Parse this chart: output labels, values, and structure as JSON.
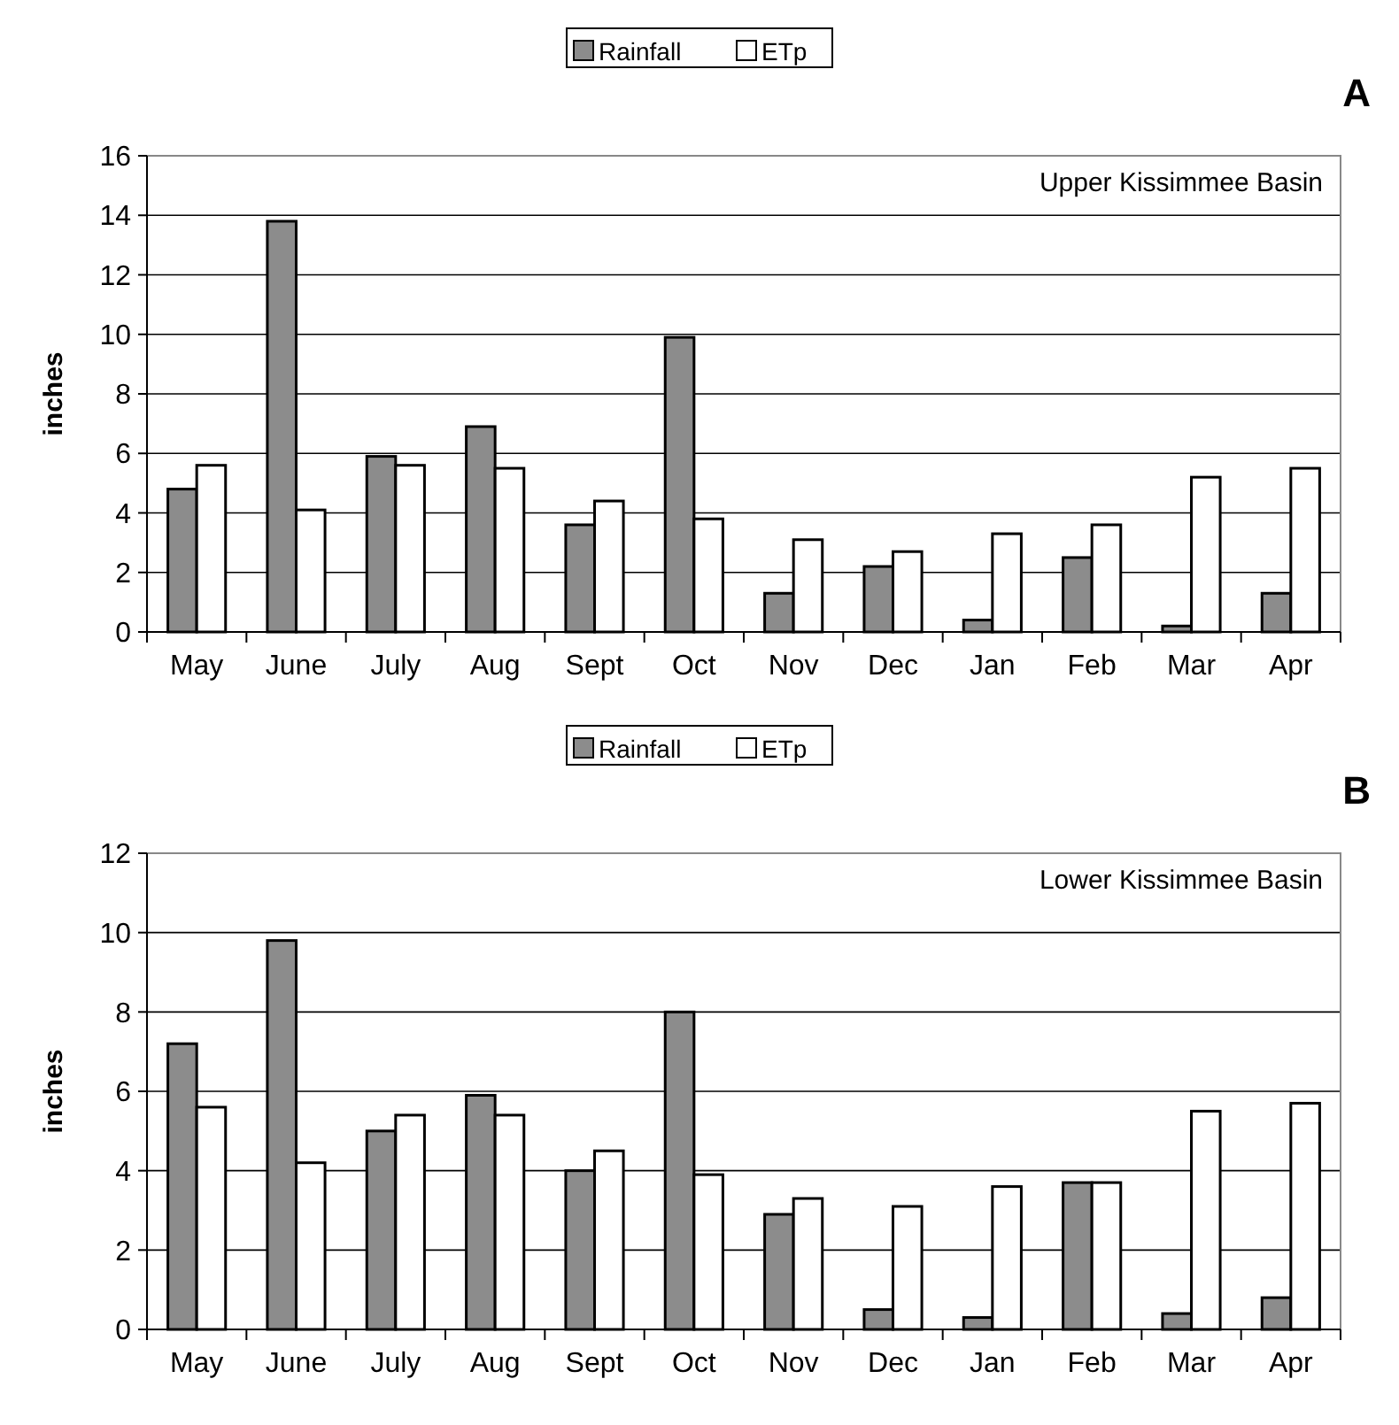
{
  "chart_data": [
    {
      "type": "bar",
      "ylabel": "inches",
      "annotations": [
        "Upper Kissimmee Basin",
        "A"
      ],
      "categories": [
        "May",
        "June",
        "July",
        "Aug",
        "Sept",
        "Oct",
        "Nov",
        "Dec",
        "Jan",
        "Feb",
        "Mar",
        "Apr"
      ],
      "ylim": [
        0,
        16
      ],
      "yticks": [
        0,
        2,
        4,
        6,
        8,
        10,
        12,
        14,
        16
      ],
      "grid": "y",
      "legend": "top",
      "series": [
        {
          "name": "Rainfall",
          "color": "#8c8c8c",
          "values": [
            4.8,
            13.8,
            5.9,
            6.9,
            3.6,
            9.9,
            1.3,
            2.2,
            0.4,
            2.5,
            0.2,
            1.3
          ]
        },
        {
          "name": "ETp",
          "color": "#ffffff",
          "values": [
            5.6,
            4.1,
            5.6,
            5.5,
            4.4,
            3.8,
            3.1,
            2.7,
            3.3,
            3.6,
            5.2,
            5.5
          ]
        }
      ]
    },
    {
      "type": "bar",
      "ylabel": "inches",
      "annotations": [
        "Lower Kissimmee Basin",
        "B"
      ],
      "categories": [
        "May",
        "June",
        "July",
        "Aug",
        "Sept",
        "Oct",
        "Nov",
        "Dec",
        "Jan",
        "Feb",
        "Mar",
        "Apr"
      ],
      "ylim": [
        0,
        12
      ],
      "yticks": [
        0,
        2,
        4,
        6,
        8,
        10,
        12
      ],
      "grid": "y",
      "legend": "top",
      "series": [
        {
          "name": "Rainfall",
          "color": "#8c8c8c",
          "values": [
            7.2,
            9.8,
            5.0,
            5.9,
            4.0,
            8.0,
            2.9,
            0.5,
            0.3,
            3.7,
            0.4,
            0.8
          ]
        },
        {
          "name": "ETp",
          "color": "#ffffff",
          "values": [
            5.6,
            4.2,
            5.4,
            5.4,
            4.5,
            3.9,
            3.3,
            3.1,
            3.6,
            3.7,
            5.5,
            5.7
          ]
        }
      ]
    }
  ]
}
